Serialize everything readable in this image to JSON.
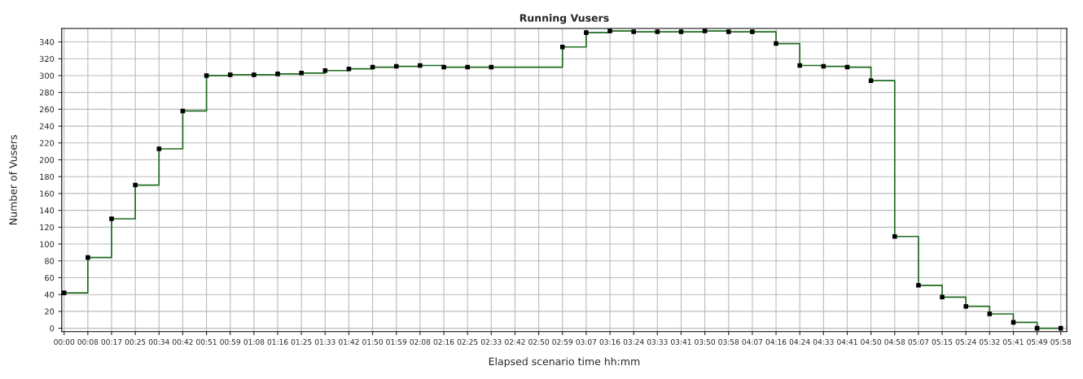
{
  "chart_data": {
    "type": "step",
    "title": "Running Vusers",
    "xlabel": "Elapsed scenario time hh:mm",
    "ylabel": "Number of Vusers",
    "categories": [
      "00:00",
      "00:08",
      "00:17",
      "00:25",
      "00:34",
      "00:42",
      "00:51",
      "00:59",
      "01:08",
      "01:16",
      "01:25",
      "01:33",
      "01:42",
      "01:50",
      "01:59",
      "02:08",
      "02:16",
      "02:25",
      "02:33",
      "02:42",
      "02:50",
      "02:59",
      "03:07",
      "03:16",
      "03:24",
      "03:33",
      "03:41",
      "03:50",
      "03:58",
      "04:07",
      "04:16",
      "04:24",
      "04:33",
      "04:41",
      "04:50",
      "04:58",
      "05:07",
      "05:15",
      "05:24",
      "05:32",
      "05:41",
      "05:49",
      "05:58"
    ],
    "series": [
      {
        "color": "#1e6b1e",
        "values": [
          42,
          84,
          130,
          170,
          213,
          258,
          300,
          301,
          301,
          302,
          303,
          306,
          308,
          310,
          311,
          312,
          310,
          310,
          310,
          null,
          null,
          334,
          351,
          353,
          352,
          352,
          352,
          353,
          352,
          352,
          338,
          312,
          311,
          310,
          294,
          109,
          51,
          37,
          26,
          17,
          7,
          0,
          0
        ]
      }
    ],
    "ylim": [
      -4,
      356
    ],
    "yticks": [
      0,
      20,
      40,
      60,
      80,
      100,
      120,
      140,
      160,
      180,
      200,
      220,
      240,
      260,
      280,
      300,
      320,
      340
    ],
    "grid": true,
    "marker": "square",
    "line_style": "solid"
  }
}
